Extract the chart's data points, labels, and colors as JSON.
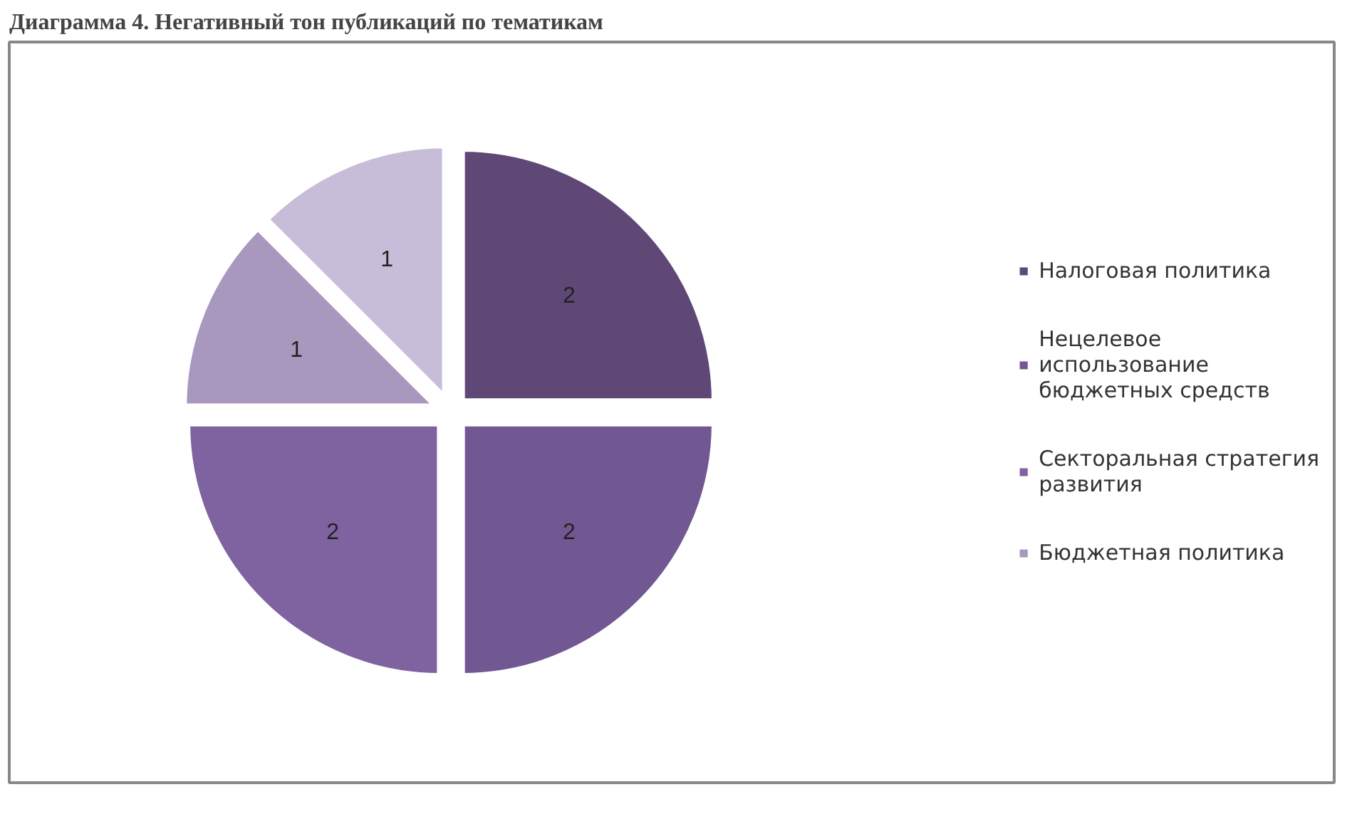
{
  "chart_data": {
    "type": "pie",
    "title": "Диаграмма 4. Негативный тон публикаций по тематикам",
    "categories": [
      "Налоговая политика",
      "Нецелевое использование бюджетных средств",
      "Секторальная стратегия развития",
      "Бюджетная политика",
      null
    ],
    "values": [
      2,
      2,
      2,
      1,
      1
    ],
    "colors": [
      "#5f4876",
      "#725892",
      "#7f62a0",
      "#a898bd",
      "#c7bdd8"
    ],
    "data_labels": true,
    "legend": "right"
  }
}
